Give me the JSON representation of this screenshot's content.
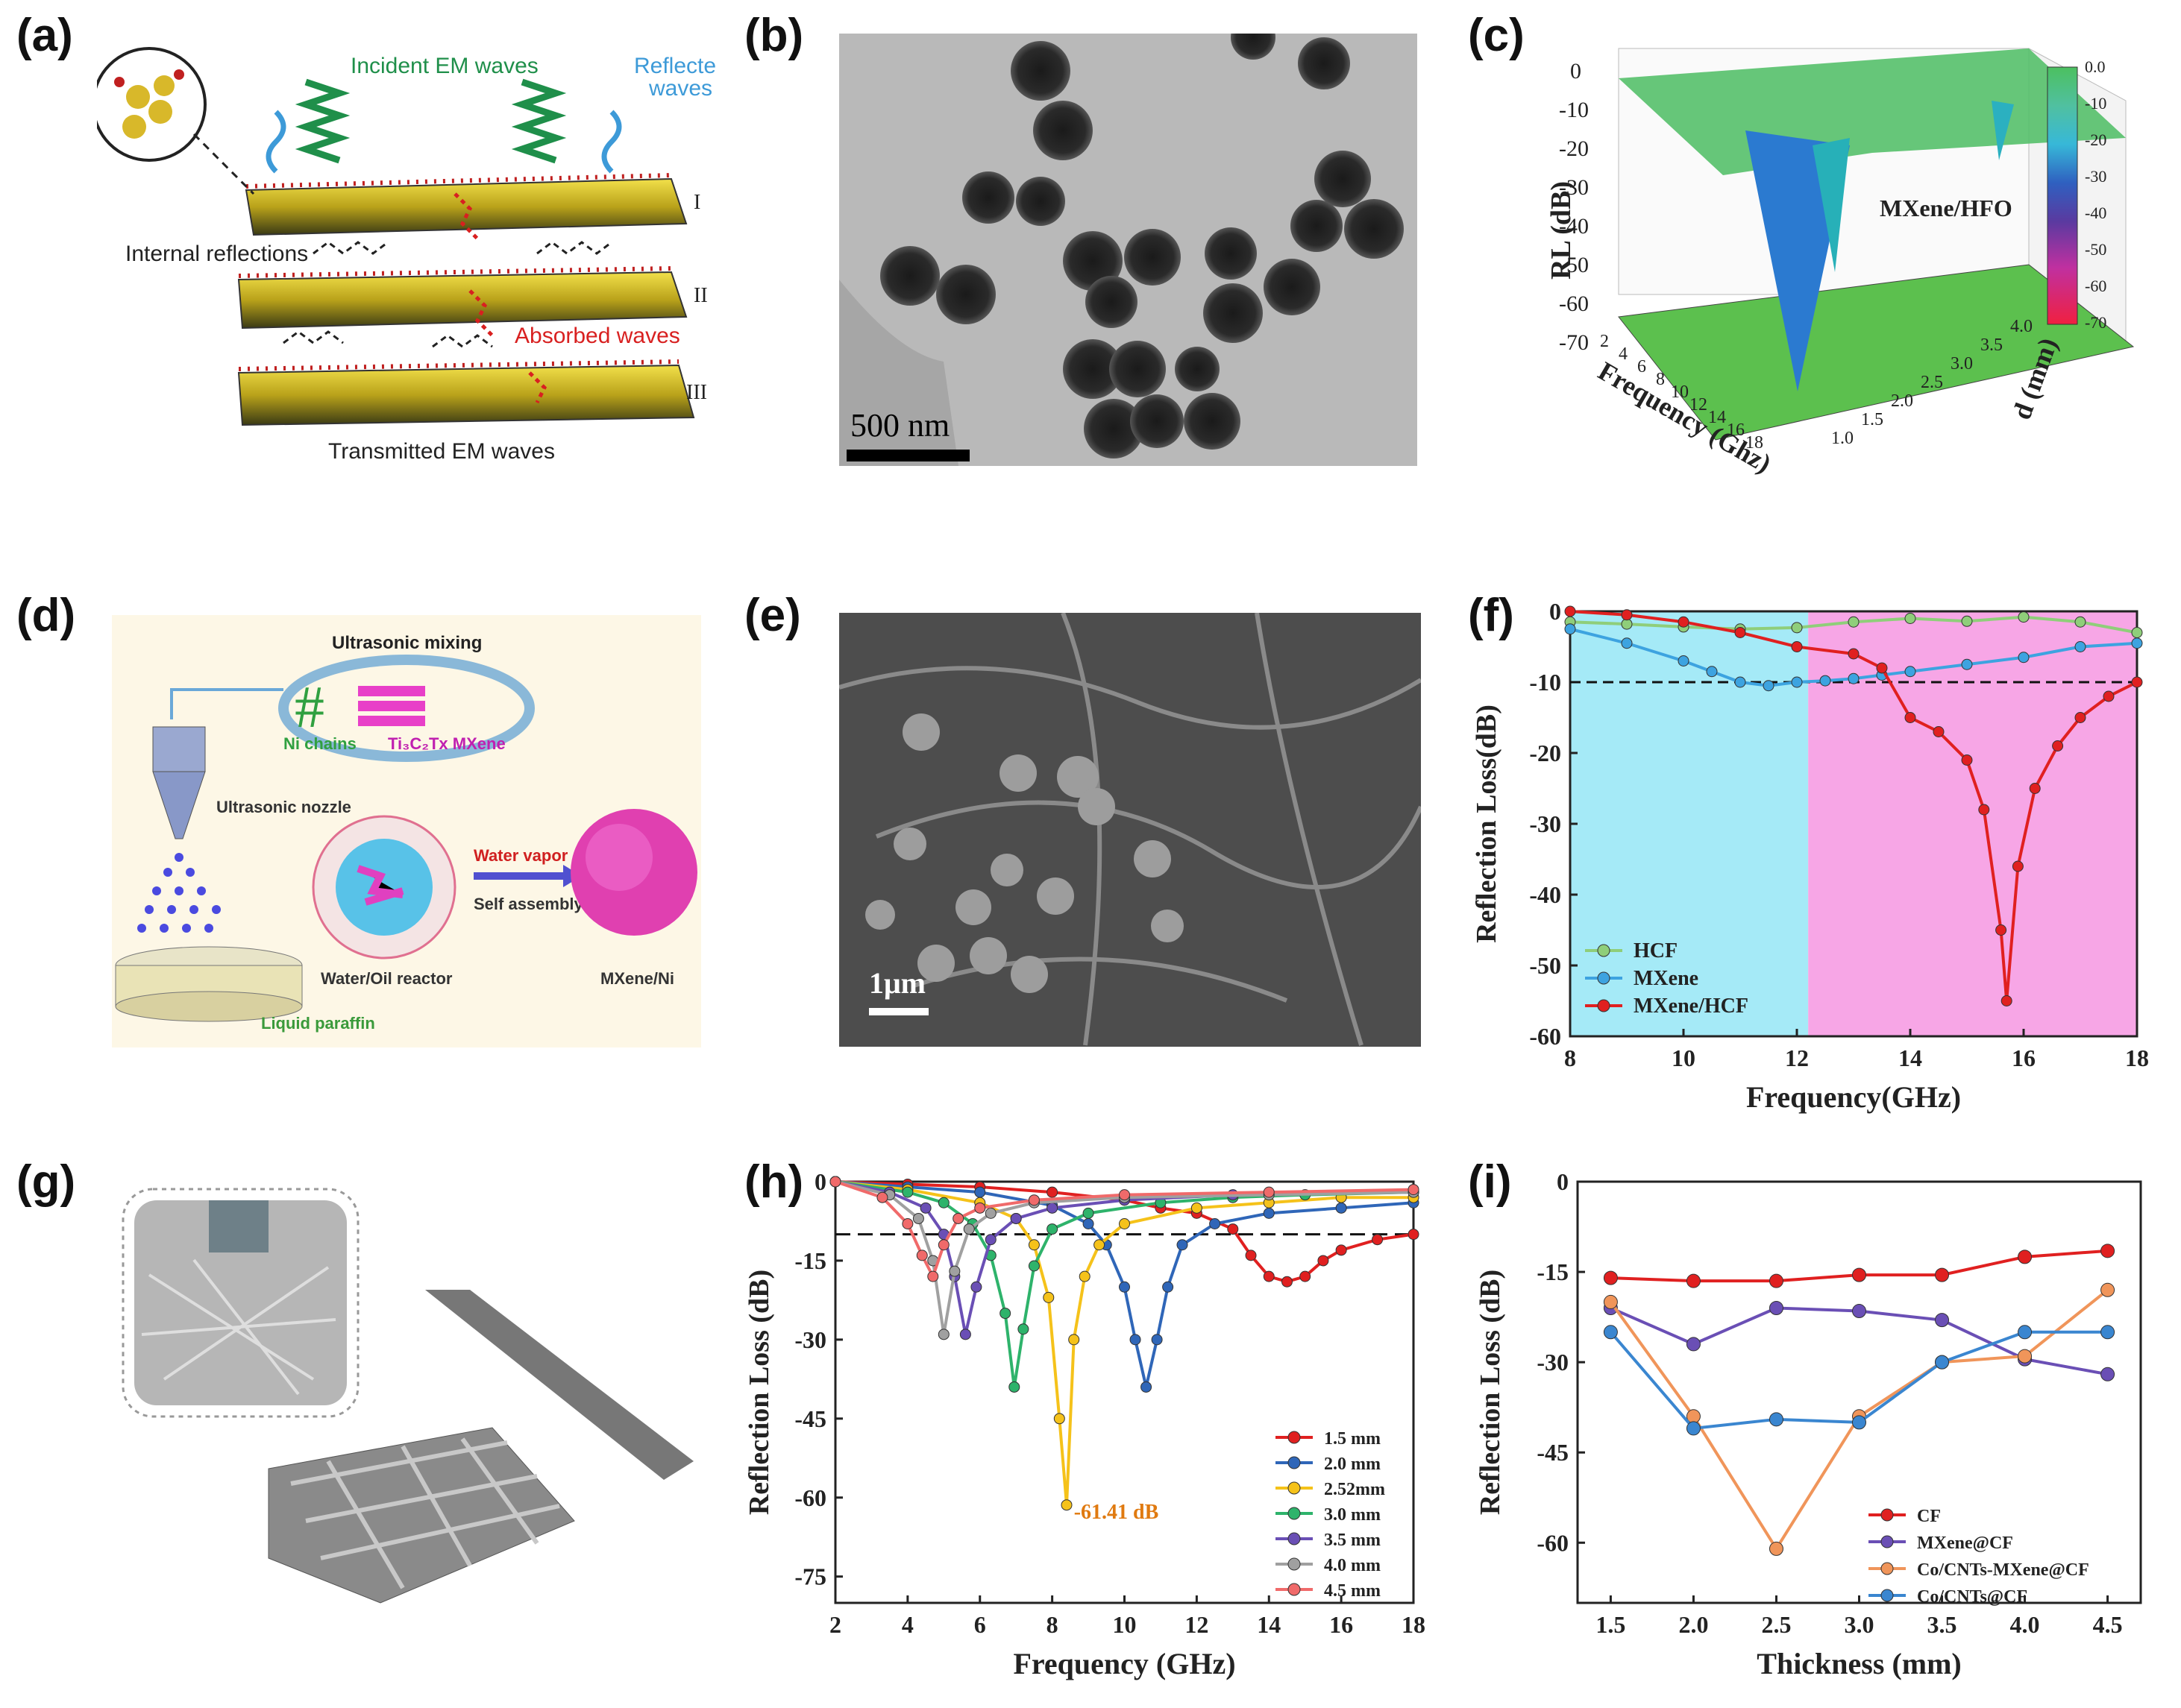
{
  "panels": {
    "a": {
      "label": "(a)",
      "incident": "Incident EM waves",
      "reflected_1": "Reflected",
      "reflected_2": "waves",
      "internal": "Internal reflections",
      "absorbed": "Absorbed waves",
      "transmitted": "Transmitted EM waves",
      "layer_1": "I",
      "layer_2": "II",
      "layer_3": "III"
    },
    "b": {
      "label": "(b)",
      "scale": "500 nm"
    },
    "c": {
      "label": "(c)",
      "annotation": "MXene/HFO",
      "zlabel": "RL (dB)",
      "xlabel": "Frequency (Ghz)",
      "ylabel": "d (mm)",
      "z_ticks": [
        "0",
        "-10",
        "-20",
        "-30",
        "-40",
        "-50",
        "-60",
        "-70"
      ],
      "x_ticks": [
        "2",
        "4",
        "6",
        "8",
        "10",
        "12",
        "14",
        "16",
        "18"
      ],
      "y_ticks": [
        "1.0",
        "1.5",
        "2.0",
        "2.5",
        "3.0",
        "3.5",
        "4.0"
      ],
      "colorbar_ticks": [
        "0.0",
        "-10",
        "-20",
        "-30",
        "-40",
        "-50",
        "-60",
        "-70"
      ]
    },
    "d": {
      "label": "(d)",
      "mixing": "Ultrasonic mixing",
      "ni": "Ni chains",
      "mxene": "Ti₃C₂Tx MXene",
      "nozzle": "Ultrasonic nozzle",
      "vapor": "Water vapor",
      "assembly": "Self assembly",
      "reactor": "Water/Oil reactor",
      "product": "MXene/Ni",
      "paraffin": "Liquid paraffin"
    },
    "e": {
      "label": "(e)",
      "scale": "1μm"
    },
    "f": {
      "label": "(f)"
    },
    "g": {
      "label": "(g)"
    },
    "h": {
      "label": "(h)",
      "annotation": "-61.41 dB"
    },
    "i": {
      "label": "(i)"
    }
  },
  "colors": {
    "red": "#e02020",
    "blue": "#2f66b8",
    "cyan_panel": "#a5eaf7",
    "pink_panel": "#f7a6e6",
    "green": "#8fce7a",
    "sky": "#3da3e0",
    "yellow": "#f5c21a",
    "teal": "#2eb36b",
    "purple": "#6a4fb5",
    "gray": "#a0a0a0",
    "salmon": "#f06a6a",
    "orange": "#f0955a"
  },
  "chart_data": [
    {
      "id": "f",
      "type": "line",
      "xlabel": "Frequency(GHz)",
      "ylabel": "Reflection Loss(dB)",
      "xlim": [
        8,
        18
      ],
      "ylim": [
        -60,
        0
      ],
      "xticks": [
        8,
        10,
        12,
        14,
        16,
        18
      ],
      "yticks": [
        0,
        -10,
        -20,
        -30,
        -40,
        -50,
        -60
      ],
      "reference_line": -10,
      "legend_position": "bottom-left",
      "series": [
        {
          "name": "HCF",
          "color": "#8fce7a",
          "x": [
            8,
            9,
            10,
            11,
            12,
            13,
            14,
            15,
            16,
            17,
            18
          ],
          "y": [
            -1.5,
            -1.8,
            -2.2,
            -2.5,
            -2.3,
            -1.5,
            -1,
            -1.4,
            -0.8,
            -1.5,
            -3
          ]
        },
        {
          "name": "MXene",
          "color": "#3da3e0",
          "x": [
            8,
            9,
            10,
            10.5,
            11,
            11.5,
            12,
            12.5,
            13,
            13.5,
            14,
            15,
            16,
            17,
            18
          ],
          "y": [
            -2.5,
            -4.5,
            -7,
            -8.5,
            -10,
            -10.5,
            -10,
            -9.8,
            -9.5,
            -9,
            -8.5,
            -7.5,
            -6.5,
            -5,
            -4.5
          ]
        },
        {
          "name": "MXene/HCF",
          "color": "#e02020",
          "x": [
            8,
            9,
            10,
            11,
            12,
            13,
            13.5,
            14,
            14.5,
            15,
            15.3,
            15.6,
            15.7,
            15.9,
            16.2,
            16.6,
            17,
            17.5,
            18
          ],
          "y": [
            0,
            -0.5,
            -1.5,
            -3,
            -5,
            -6,
            -8,
            -15,
            -17,
            -21,
            -28,
            -45,
            -55,
            -36,
            -25,
            -19,
            -15,
            -12,
            -10
          ]
        }
      ]
    },
    {
      "id": "h",
      "type": "line",
      "xlabel": "Frequency (GHz)",
      "ylabel": "Reflection Loss (dB)",
      "xlim": [
        2,
        18
      ],
      "ylim": [
        -80,
        0
      ],
      "xticks": [
        2,
        4,
        6,
        8,
        10,
        12,
        14,
        16,
        18
      ],
      "yticks": [
        0,
        -15,
        -30,
        -45,
        -60,
        -75
      ],
      "reference_line": -10,
      "legend_position": "bottom-right",
      "series": [
        {
          "name": "1.5   mm",
          "color": "#e02020",
          "x": [
            2,
            4,
            6,
            8,
            10,
            11,
            12,
            13,
            13.5,
            14,
            14.5,
            15,
            15.5,
            16,
            17,
            18
          ],
          "y": [
            0,
            -0.5,
            -1,
            -2,
            -3.5,
            -5,
            -6,
            -9,
            -14,
            -18,
            -19,
            -18,
            -15,
            -13,
            -11,
            -10
          ]
        },
        {
          "name": "2.0   mm",
          "color": "#2f66b8",
          "x": [
            2,
            4,
            6,
            8,
            9,
            9.5,
            10,
            10.3,
            10.6,
            10.9,
            11.2,
            11.6,
            12.5,
            14,
            16,
            18
          ],
          "y": [
            0,
            -1,
            -2,
            -4.5,
            -8,
            -12,
            -20,
            -30,
            -39,
            -30,
            -20,
            -12,
            -8,
            -6,
            -5,
            -4
          ]
        },
        {
          "name": "2.52mm",
          "color": "#f5c21a",
          "x": [
            2,
            4,
            6,
            7,
            7.5,
            7.9,
            8.2,
            8.4,
            8.6,
            8.9,
            9.3,
            10,
            12,
            14,
            16,
            18
          ],
          "y": [
            0,
            -1.5,
            -4,
            -7,
            -12,
            -22,
            -45,
            -61.41,
            -30,
            -18,
            -12,
            -8,
            -5,
            -4,
            -3,
            -3
          ]
        },
        {
          "name": "3.0   mm",
          "color": "#2eb36b",
          "x": [
            2,
            4,
            5,
            5.8,
            6.3,
            6.7,
            6.95,
            7.2,
            7.5,
            8,
            9,
            11,
            13,
            15,
            18
          ],
          "y": [
            0,
            -2,
            -4,
            -8,
            -14,
            -25,
            -39,
            -28,
            -16,
            -9,
            -6,
            -4,
            -3,
            -2.5,
            -2
          ]
        },
        {
          "name": "3.5   mm",
          "color": "#6a4fb5",
          "x": [
            2,
            3.5,
            4.5,
            5,
            5.3,
            5.6,
            5.9,
            6.3,
            7,
            8,
            10,
            13,
            18
          ],
          "y": [
            0,
            -2,
            -5,
            -10,
            -18,
            -29,
            -20,
            -11,
            -7,
            -5,
            -3.5,
            -2.5,
            -2
          ]
        },
        {
          "name": "4.0   mm",
          "color": "#a0a0a0",
          "x": [
            2,
            3.5,
            4.3,
            4.7,
            5,
            5.3,
            5.7,
            6.3,
            7.5,
            10,
            14,
            18
          ],
          "y": [
            0,
            -2.5,
            -7,
            -15,
            -29,
            -17,
            -9,
            -6,
            -4,
            -3,
            -2.5,
            -2
          ]
        },
        {
          "name": "4.5   mm",
          "color": "#f06a6a",
          "x": [
            2,
            3.3,
            4,
            4.4,
            4.7,
            5,
            5.4,
            6,
            7.5,
            10,
            14,
            18
          ],
          "y": [
            0,
            -3,
            -8,
            -14,
            -18,
            -12,
            -7,
            -5,
            -3.5,
            -2.5,
            -2,
            -1.5
          ]
        }
      ]
    },
    {
      "id": "i",
      "type": "line",
      "xlabel": "Thickness (mm)",
      "ylabel": "Reflection Loss (dB)",
      "xlim": [
        1.3,
        4.7
      ],
      "ylim": [
        -70,
        0
      ],
      "xticks": [
        1.5,
        2.0,
        2.5,
        3.0,
        3.5,
        4.0,
        4.5
      ],
      "yticks": [
        0,
        -15,
        -30,
        -45,
        -60
      ],
      "legend_position": "bottom-right",
      "series": [
        {
          "name": "CF",
          "color": "#e02020",
          "x": [
            1.5,
            2.0,
            2.5,
            3.0,
            3.5,
            4.0,
            4.5
          ],
          "y": [
            -16,
            -16.5,
            -16.5,
            -15.5,
            -15.5,
            -12.5,
            -11.5
          ]
        },
        {
          "name": "MXene@CF",
          "color": "#6a4fb5",
          "x": [
            1.5,
            2.0,
            2.5,
            3.0,
            3.5,
            4.0,
            4.5
          ],
          "y": [
            -21,
            -27,
            -21,
            -21.5,
            -23,
            -29.5,
            -32
          ]
        },
        {
          "name": "Co/CNTs-MXene@CF",
          "color": "#f0955a",
          "x": [
            1.5,
            2.0,
            2.5,
            3.0,
            3.5,
            4.0,
            4.5
          ],
          "y": [
            -20,
            -39,
            -61,
            -39,
            -30,
            -29,
            -18
          ]
        },
        {
          "name": "Co/CNTs@CF",
          "color": "#3a86d0",
          "x": [
            1.5,
            2.0,
            2.5,
            3.0,
            3.5,
            4.0,
            4.5
          ],
          "y": [
            -25,
            -41,
            -39.5,
            -40,
            -30,
            -25,
            -25
          ]
        }
      ]
    }
  ]
}
